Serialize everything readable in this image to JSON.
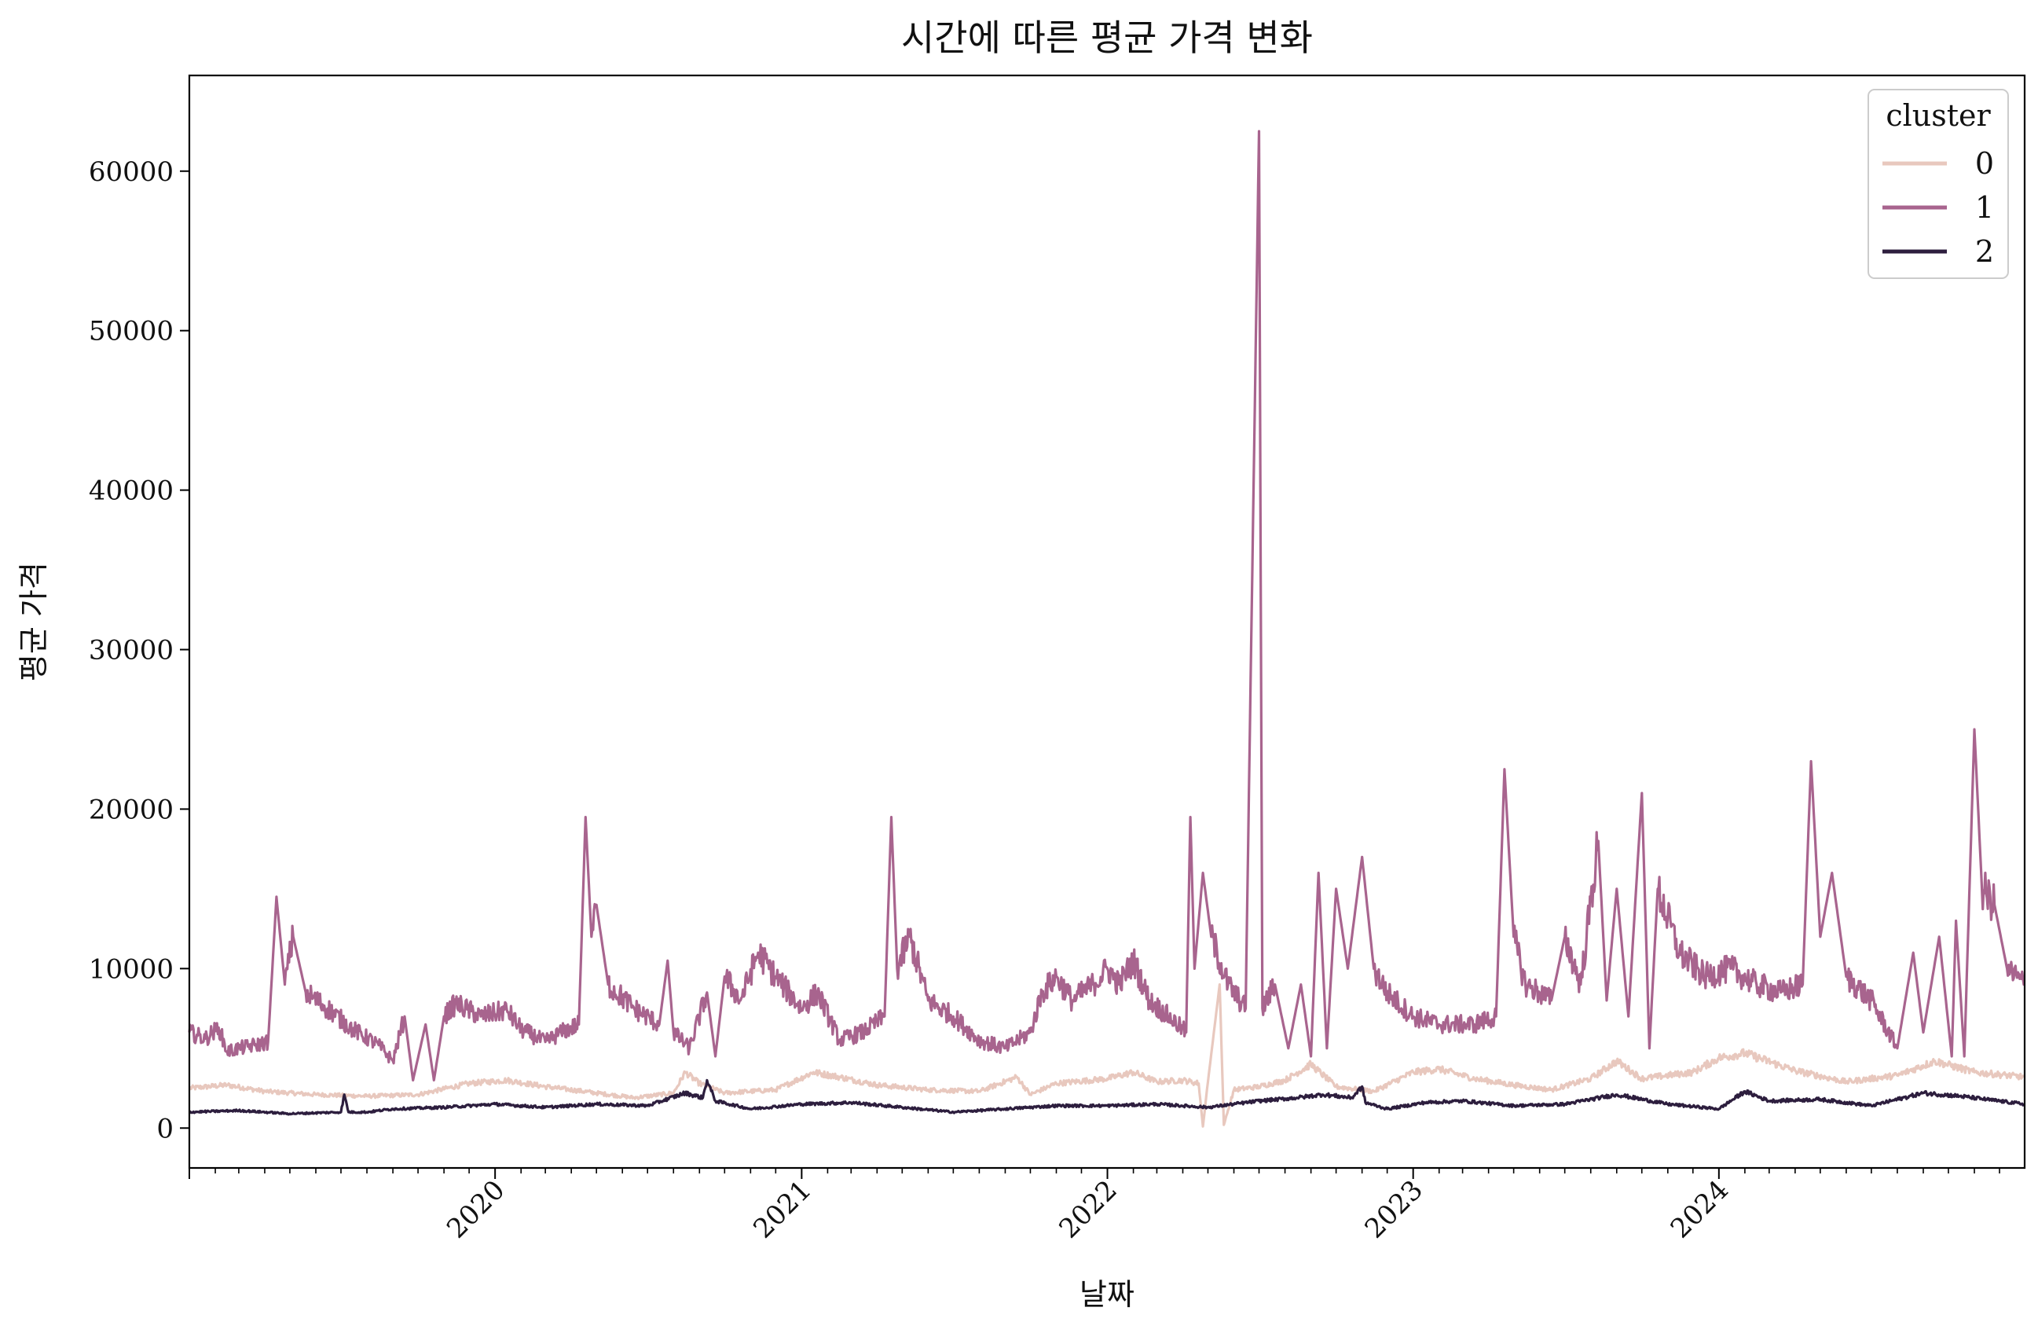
{
  "chart_data": {
    "type": "line",
    "title": "시간에 따른 평균 가격 변화",
    "xlabel": "날짜",
    "ylabel": "평균 가격",
    "x_range": [
      "2019-01-01",
      "2024-12-31"
    ],
    "x_tick_labels": [
      "2020",
      "2021",
      "2022",
      "2023",
      "2024"
    ],
    "ylim": [
      -2500,
      66000
    ],
    "y_ticks": [
      0,
      10000,
      20000,
      30000,
      40000,
      50000,
      60000
    ],
    "y_tick_labels": [
      "0",
      "10000",
      "20000",
      "30000",
      "40000",
      "50000",
      "60000"
    ],
    "grid": false,
    "legend": {
      "title": "cluster",
      "position": "top-right"
    },
    "series": [
      {
        "name": "0",
        "color": "#e8c8be",
        "points": [
          [
            "2019-01-01",
            2500
          ],
          [
            "2019-02-15",
            2700
          ],
          [
            "2019-04-01",
            2300
          ],
          [
            "2019-06-01",
            2100
          ],
          [
            "2019-08-01",
            2000
          ],
          [
            "2019-10-01",
            2100
          ],
          [
            "2019-12-01",
            2800
          ],
          [
            "2020-01-15",
            3000
          ],
          [
            "2020-03-01",
            2600
          ],
          [
            "2020-05-01",
            2200
          ],
          [
            "2020-06-15",
            1900
          ],
          [
            "2020-08-01",
            2200
          ],
          [
            "2020-08-15",
            3500
          ],
          [
            "2020-09-01",
            2800
          ],
          [
            "2020-10-01",
            2200
          ],
          [
            "2020-12-01",
            2400
          ],
          [
            "2021-01-15",
            3500
          ],
          [
            "2021-02-15",
            3200
          ],
          [
            "2021-04-01",
            2700
          ],
          [
            "2021-06-01",
            2400
          ],
          [
            "2021-08-01",
            2300
          ],
          [
            "2021-09-15",
            3200
          ],
          [
            "2021-10-01",
            2100
          ],
          [
            "2021-11-01",
            2800
          ],
          [
            "2022-01-01",
            3100
          ],
          [
            "2022-02-01",
            3500
          ],
          [
            "2022-03-01",
            2900
          ],
          [
            "2022-04-01",
            3000
          ],
          [
            "2022-04-20",
            2800
          ],
          [
            "2022-04-25",
            100
          ],
          [
            "2022-05-01",
            2900
          ],
          [
            "2022-05-15",
            9000
          ],
          [
            "2022-05-20",
            200
          ],
          [
            "2022-06-01",
            2400
          ],
          [
            "2022-07-01",
            2600
          ],
          [
            "2022-08-01",
            3000
          ],
          [
            "2022-09-01",
            4000
          ],
          [
            "2022-10-01",
            2600
          ],
          [
            "2022-11-15",
            2300
          ],
          [
            "2023-01-01",
            3500
          ],
          [
            "2023-02-01",
            3700
          ],
          [
            "2023-03-15",
            3100
          ],
          [
            "2023-05-01",
            2700
          ],
          [
            "2023-06-15",
            2400
          ],
          [
            "2023-08-01",
            3100
          ],
          [
            "2023-09-01",
            4200
          ],
          [
            "2023-10-01",
            3100
          ],
          [
            "2023-12-01",
            3500
          ],
          [
            "2024-01-01",
            4400
          ],
          [
            "2024-02-01",
            4700
          ],
          [
            "2024-04-01",
            3600
          ],
          [
            "2024-06-01",
            2900
          ],
          [
            "2024-08-01",
            3300
          ],
          [
            "2024-09-15",
            4200
          ],
          [
            "2024-11-01",
            3500
          ],
          [
            "2024-12-31",
            3200
          ]
        ]
      },
      {
        "name": "1",
        "color": "#a8648e",
        "points": [
          [
            "2019-01-01",
            6000
          ],
          [
            "2019-01-20",
            5600
          ],
          [
            "2019-02-05",
            6300
          ],
          [
            "2019-02-15",
            4800
          ],
          [
            "2019-03-01",
            5000
          ],
          [
            "2019-03-20",
            5200
          ],
          [
            "2019-04-05",
            5400
          ],
          [
            "2019-04-15",
            14500
          ],
          [
            "2019-04-25",
            9000
          ],
          [
            "2019-05-05",
            12000
          ],
          [
            "2019-05-20",
            8500
          ],
          [
            "2019-06-15",
            7500
          ],
          [
            "2019-07-15",
            6200
          ],
          [
            "2019-08-15",
            5200
          ],
          [
            "2019-09-01",
            4200
          ],
          [
            "2019-09-15",
            7000
          ],
          [
            "2019-09-25",
            3000
          ],
          [
            "2019-10-10",
            6500
          ],
          [
            "2019-10-20",
            3000
          ],
          [
            "2019-11-01",
            7000
          ],
          [
            "2019-11-15",
            7800
          ],
          [
            "2019-12-15",
            7000
          ],
          [
            "2020-01-15",
            7400
          ],
          [
            "2020-02-01",
            6200
          ],
          [
            "2020-03-01",
            5400
          ],
          [
            "2020-03-20",
            6000
          ],
          [
            "2020-04-10",
            6500
          ],
          [
            "2020-04-18",
            19500
          ],
          [
            "2020-04-25",
            12000
          ],
          [
            "2020-05-01",
            14000
          ],
          [
            "2020-05-15",
            9000
          ],
          [
            "2020-06-15",
            7500
          ],
          [
            "2020-07-15",
            6500
          ],
          [
            "2020-07-25",
            10500
          ],
          [
            "2020-08-01",
            6000
          ],
          [
            "2020-08-20",
            5000
          ],
          [
            "2020-09-10",
            8500
          ],
          [
            "2020-09-20",
            4500
          ],
          [
            "2020-10-01",
            9500
          ],
          [
            "2020-10-20",
            8000
          ],
          [
            "2020-11-10",
            11000
          ],
          [
            "2020-12-01",
            9500
          ],
          [
            "2021-01-01",
            7500
          ],
          [
            "2021-01-20",
            8500
          ],
          [
            "2021-02-15",
            5500
          ],
          [
            "2021-03-15",
            6000
          ],
          [
            "2021-04-10",
            7000
          ],
          [
            "2021-04-18",
            19500
          ],
          [
            "2021-04-25",
            10000
          ],
          [
            "2021-05-10",
            12000
          ],
          [
            "2021-06-01",
            8000
          ],
          [
            "2021-07-01",
            7000
          ],
          [
            "2021-08-01",
            5500
          ],
          [
            "2021-09-01",
            5000
          ],
          [
            "2021-10-01",
            6000
          ],
          [
            "2021-10-15",
            8500
          ],
          [
            "2021-11-01",
            9500
          ],
          [
            "2021-11-20",
            8000
          ],
          [
            "2021-12-15",
            9000
          ],
          [
            "2022-01-01",
            10000
          ],
          [
            "2022-01-15",
            9000
          ],
          [
            "2022-02-01",
            10500
          ],
          [
            "2022-02-20",
            8000
          ],
          [
            "2022-03-15",
            7000
          ],
          [
            "2022-04-05",
            6000
          ],
          [
            "2022-04-10",
            19500
          ],
          [
            "2022-04-15",
            10000
          ],
          [
            "2022-04-25",
            16000
          ],
          [
            "2022-05-05",
            12000
          ],
          [
            "2022-05-25",
            9000
          ],
          [
            "2022-06-15",
            7500
          ],
          [
            "2022-07-01",
            62500
          ],
          [
            "2022-07-05",
            7500
          ],
          [
            "2022-07-20",
            9000
          ],
          [
            "2022-08-05",
            5000
          ],
          [
            "2022-08-20",
            9000
          ],
          [
            "2022-09-01",
            4500
          ],
          [
            "2022-09-10",
            16000
          ],
          [
            "2022-09-20",
            5000
          ],
          [
            "2022-10-01",
            15000
          ],
          [
            "2022-10-15",
            10000
          ],
          [
            "2022-11-01",
            17000
          ],
          [
            "2022-11-15",
            10000
          ],
          [
            "2022-12-01",
            8500
          ],
          [
            "2023-01-01",
            7000
          ],
          [
            "2023-02-01",
            6500
          ],
          [
            "2023-03-15",
            6500
          ],
          [
            "2023-04-10",
            7000
          ],
          [
            "2023-04-20",
            22500
          ],
          [
            "2023-05-01",
            12000
          ],
          [
            "2023-05-15",
            9000
          ],
          [
            "2023-06-01",
            8500
          ],
          [
            "2023-06-15",
            8000
          ],
          [
            "2023-07-01",
            12000
          ],
          [
            "2023-07-20",
            9000
          ],
          [
            "2023-08-10",
            18000
          ],
          [
            "2023-08-20",
            8000
          ],
          [
            "2023-09-01",
            15000
          ],
          [
            "2023-09-15",
            7000
          ],
          [
            "2023-10-01",
            21000
          ],
          [
            "2023-10-10",
            5000
          ],
          [
            "2023-10-20",
            15000
          ],
          [
            "2023-11-15",
            11000
          ],
          [
            "2023-12-15",
            9500
          ],
          [
            "2024-01-15",
            10000
          ],
          [
            "2024-02-15",
            9000
          ],
          [
            "2024-03-15",
            8500
          ],
          [
            "2024-04-10",
            9000
          ],
          [
            "2024-04-20",
            23000
          ],
          [
            "2024-05-01",
            12000
          ],
          [
            "2024-05-15",
            16000
          ],
          [
            "2024-06-01",
            9500
          ],
          [
            "2024-07-01",
            8000
          ],
          [
            "2024-08-01",
            5000
          ],
          [
            "2024-08-20",
            11000
          ],
          [
            "2024-09-01",
            6000
          ],
          [
            "2024-09-20",
            12000
          ],
          [
            "2024-10-05",
            4500
          ],
          [
            "2024-10-10",
            13000
          ],
          [
            "2024-10-20",
            4500
          ],
          [
            "2024-11-01",
            25000
          ],
          [
            "2024-11-10",
            15000
          ],
          [
            "2024-11-25",
            14000
          ],
          [
            "2024-12-10",
            10000
          ],
          [
            "2024-12-31",
            9000
          ]
        ]
      },
      {
        "name": "2",
        "color": "#2d1e3e",
        "points": [
          [
            "2019-01-01",
            1000
          ],
          [
            "2019-03-01",
            1100
          ],
          [
            "2019-05-01",
            900
          ],
          [
            "2019-07-01",
            1000
          ],
          [
            "2019-07-05",
            2100
          ],
          [
            "2019-07-10",
            1000
          ],
          [
            "2019-08-01",
            1000
          ],
          [
            "2019-09-01",
            1200
          ],
          [
            "2019-11-01",
            1300
          ],
          [
            "2020-01-01",
            1500
          ],
          [
            "2020-03-01",
            1300
          ],
          [
            "2020-05-01",
            1500
          ],
          [
            "2020-07-01",
            1400
          ],
          [
            "2020-08-15",
            2200
          ],
          [
            "2020-09-05",
            1900
          ],
          [
            "2020-09-10",
            3000
          ],
          [
            "2020-09-20",
            1700
          ],
          [
            "2020-11-01",
            1200
          ],
          [
            "2021-01-01",
            1500
          ],
          [
            "2021-03-01",
            1600
          ],
          [
            "2021-05-01",
            1300
          ],
          [
            "2021-07-01",
            1000
          ],
          [
            "2021-09-01",
            1200
          ],
          [
            "2021-11-01",
            1400
          ],
          [
            "2022-01-01",
            1400
          ],
          [
            "2022-03-01",
            1500
          ],
          [
            "2022-05-01",
            1300
          ],
          [
            "2022-07-01",
            1700
          ],
          [
            "2022-08-15",
            1900
          ],
          [
            "2022-09-15",
            2100
          ],
          [
            "2022-10-20",
            1900
          ],
          [
            "2022-11-01",
            2600
          ],
          [
            "2022-11-05",
            1600
          ],
          [
            "2022-12-01",
            1200
          ],
          [
            "2023-01-15",
            1600
          ],
          [
            "2023-03-01",
            1700
          ],
          [
            "2023-05-01",
            1400
          ],
          [
            "2023-07-01",
            1500
          ],
          [
            "2023-09-01",
            2100
          ],
          [
            "2023-11-01",
            1500
          ],
          [
            "2024-01-01",
            1200
          ],
          [
            "2024-02-01",
            2300
          ],
          [
            "2024-03-01",
            1700
          ],
          [
            "2024-05-01",
            1800
          ],
          [
            "2024-07-01",
            1400
          ],
          [
            "2024-09-01",
            2200
          ],
          [
            "2024-10-15",
            2000
          ],
          [
            "2024-12-31",
            1500
          ]
        ]
      }
    ]
  }
}
